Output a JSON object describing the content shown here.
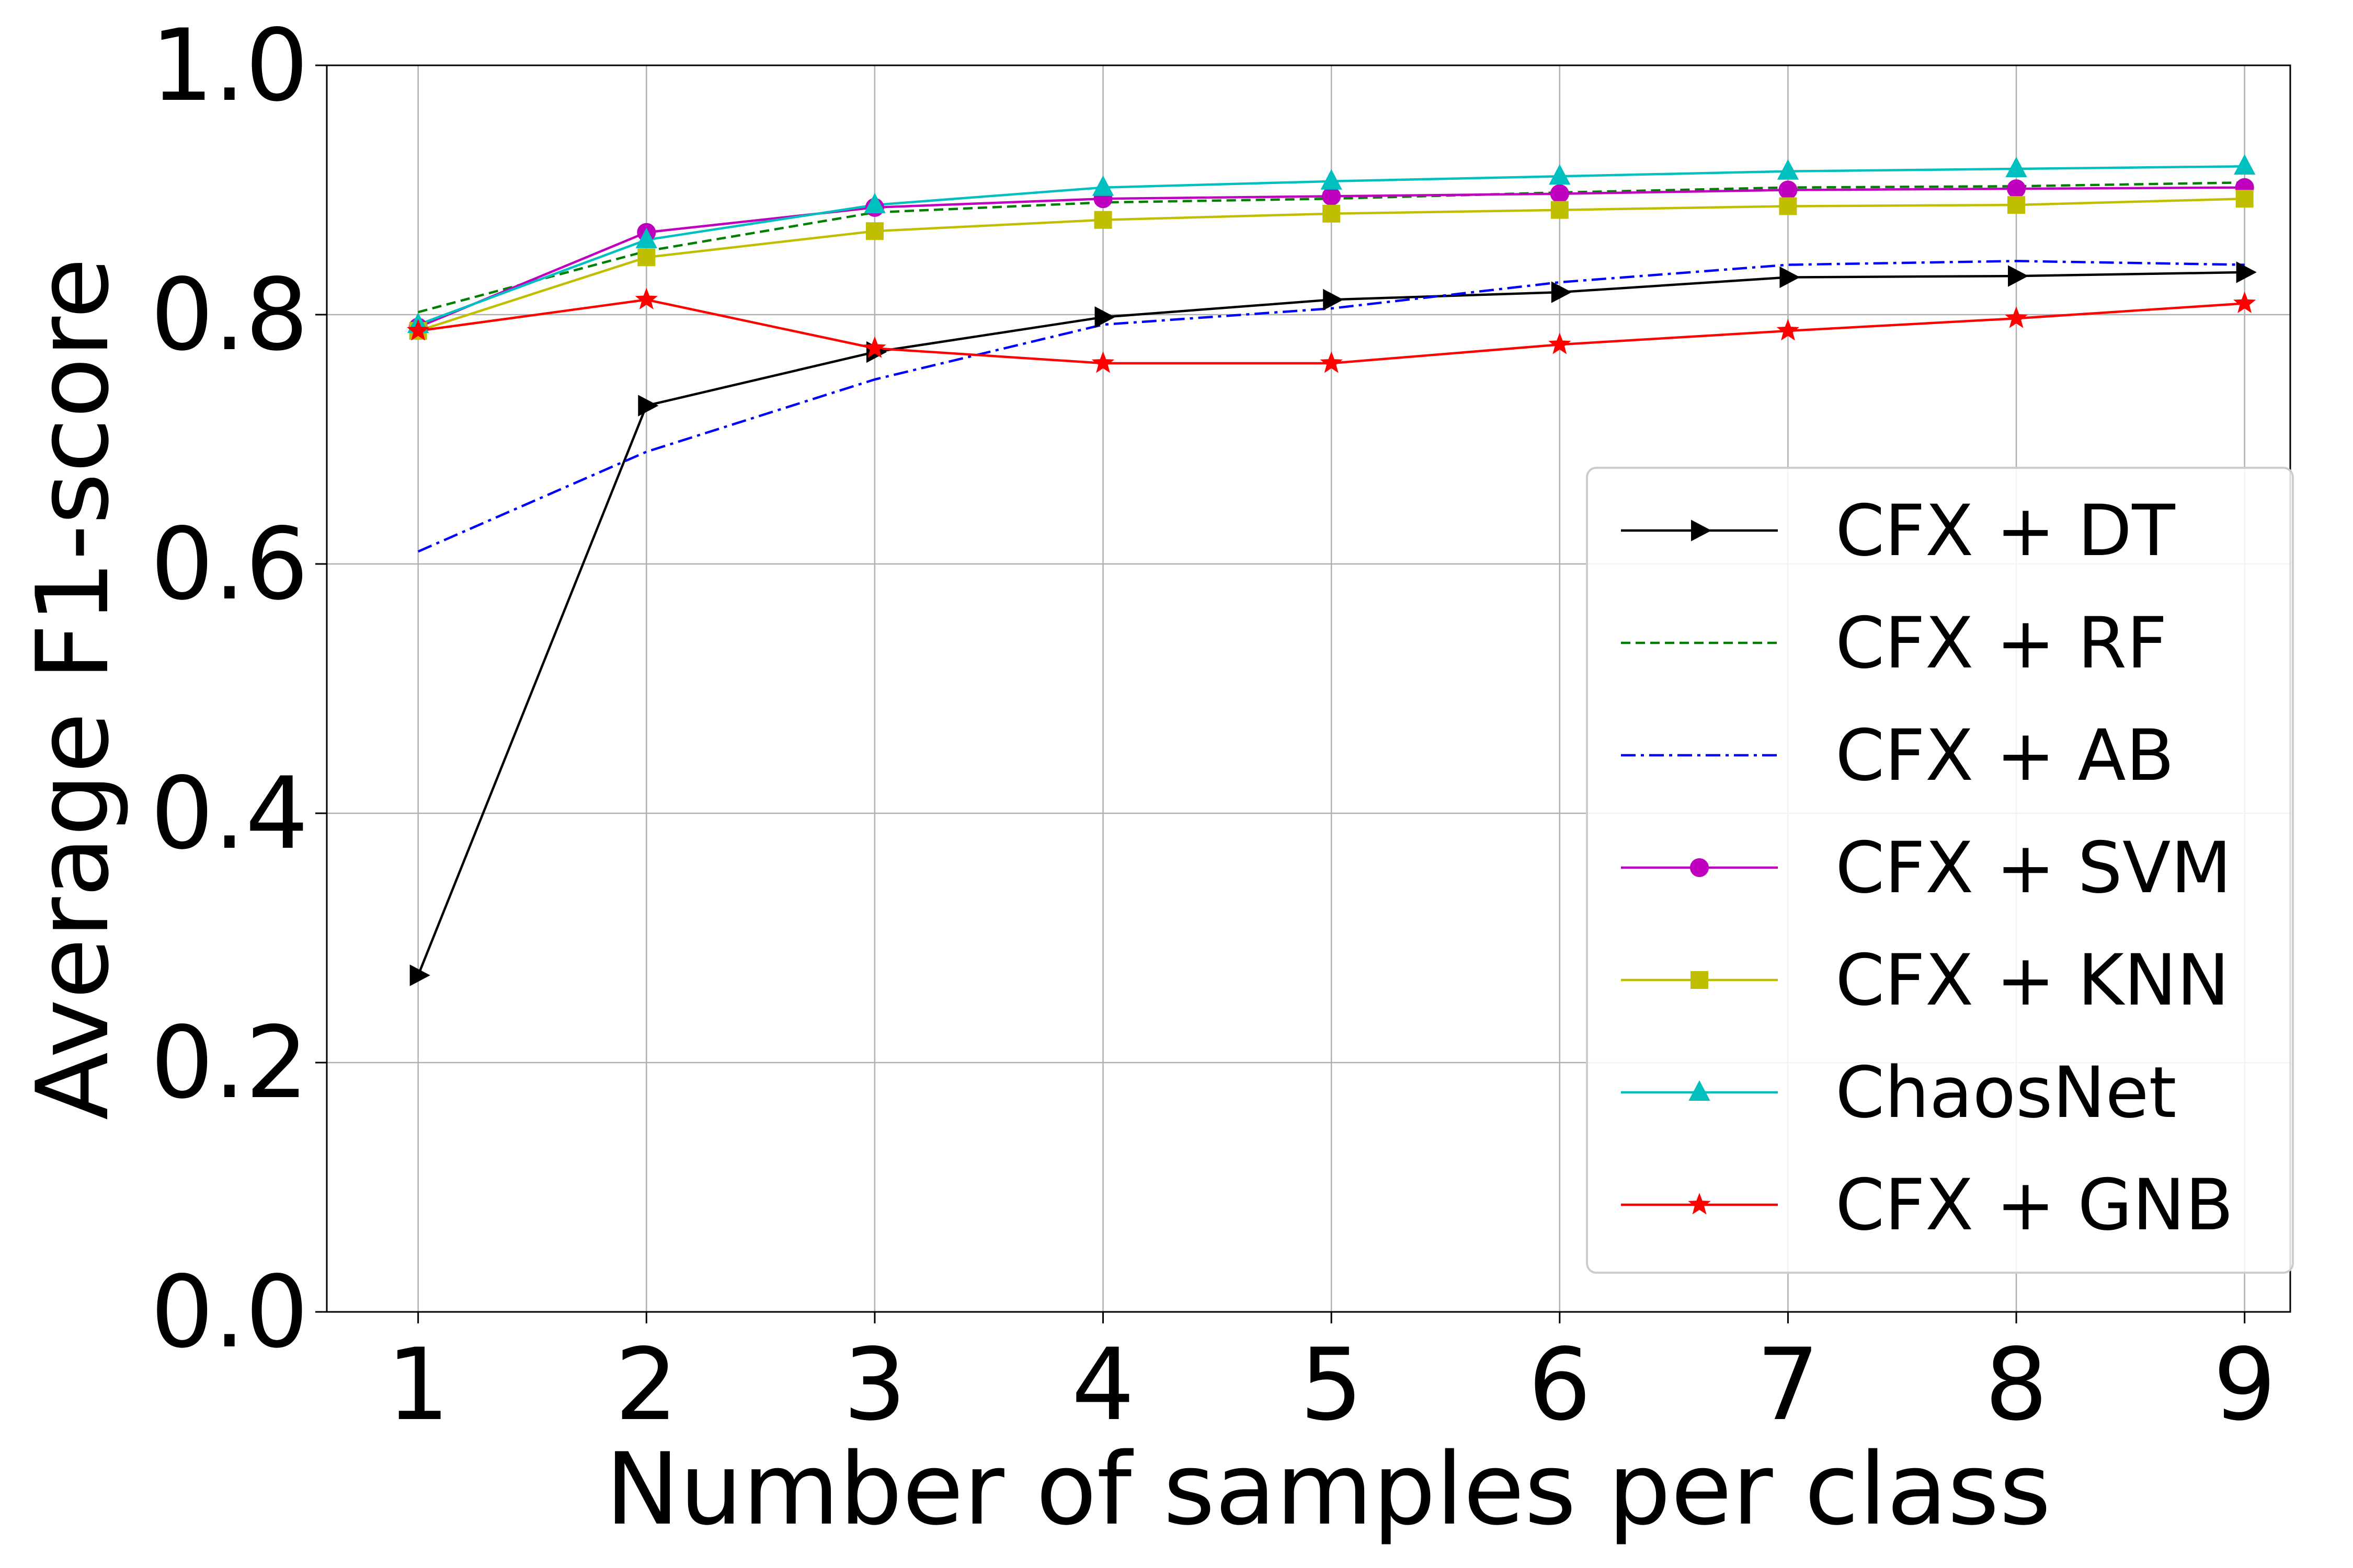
{
  "chart_data": {
    "type": "line",
    "title": "",
    "xlabel": "Number of samples per class",
    "ylabel": "Average F1-score",
    "x": [
      1,
      2,
      3,
      4,
      5,
      6,
      7,
      8,
      9
    ],
    "xlim": [
      0.6,
      9.2
    ],
    "ylim": [
      0.0,
      1.0
    ],
    "x_ticks": [
      "1",
      "2",
      "3",
      "4",
      "5",
      "6",
      "7",
      "8",
      "9"
    ],
    "y_ticks": [
      "0.0",
      "0.2",
      "0.4",
      "0.6",
      "0.8",
      "1.0"
    ],
    "grid": true,
    "legend_position": "lower-right",
    "series": [
      {
        "name": "CFX + DT",
        "color": "#000000",
        "dash": "solid",
        "marker": "triangle-right",
        "values": [
          0.27,
          0.727,
          0.77,
          0.798,
          0.812,
          0.818,
          0.83,
          0.831,
          0.834
        ]
      },
      {
        "name": "CFX + RF",
        "color": "#007f00",
        "dash": "dashed",
        "marker": "none",
        "values": [
          0.802,
          0.851,
          0.882,
          0.89,
          0.893,
          0.898,
          0.902,
          0.903,
          0.906
        ]
      },
      {
        "name": "CFX + AB",
        "color": "#0000ff",
        "dash": "dashdot",
        "marker": "none",
        "values": [
          0.61,
          0.69,
          0.748,
          0.792,
          0.805,
          0.826,
          0.84,
          0.843,
          0.84
        ]
      },
      {
        "name": "CFX + SVM",
        "color": "#bf00bf",
        "dash": "solid",
        "marker": "circle",
        "values": [
          0.79,
          0.866,
          0.886,
          0.893,
          0.895,
          0.897,
          0.9,
          0.901,
          0.902
        ]
      },
      {
        "name": "CFX + KNN",
        "color": "#bfbf00",
        "dash": "solid",
        "marker": "square",
        "values": [
          0.787,
          0.846,
          0.867,
          0.876,
          0.881,
          0.884,
          0.887,
          0.888,
          0.893
        ]
      },
      {
        "name": "ChaosNet",
        "color": "#00bfbf",
        "dash": "solid",
        "marker": "triangle-up",
        "values": [
          0.792,
          0.86,
          0.888,
          0.902,
          0.907,
          0.911,
          0.915,
          0.917,
          0.919
        ]
      },
      {
        "name": "CFX + GNB",
        "color": "#ff0000",
        "dash": "solid",
        "marker": "star",
        "values": [
          0.787,
          0.812,
          0.773,
          0.761,
          0.761,
          0.776,
          0.787,
          0.797,
          0.809
        ]
      }
    ]
  }
}
